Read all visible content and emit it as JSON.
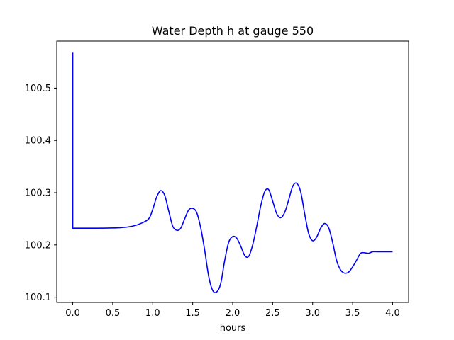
{
  "chart_data": {
    "type": "line",
    "title": "Water Depth h at gauge 550",
    "xlabel": "hours",
    "ylabel": "",
    "xlim": [
      -0.2,
      4.2
    ],
    "ylim": [
      100.09,
      100.59
    ],
    "xticks": [
      0.0,
      0.5,
      1.0,
      1.5,
      2.0,
      2.5,
      3.0,
      3.5,
      4.0
    ],
    "xtick_labels": [
      "0.0",
      "0.5",
      "1.0",
      "1.5",
      "2.0",
      "2.5",
      "3.0",
      "3.5",
      "4.0"
    ],
    "yticks": [
      100.1,
      100.2,
      100.3,
      100.4,
      100.5
    ],
    "ytick_labels": [
      "100.1",
      "100.2",
      "100.3",
      "100.4",
      "100.5"
    ],
    "grid": false,
    "series": [
      {
        "color": "#0000ff",
        "x": [
          0.0,
          0.0,
          0.0,
          0.3,
          0.6,
          0.75,
          0.85,
          0.95,
          1.0,
          1.05,
          1.1,
          1.15,
          1.2,
          1.25,
          1.3,
          1.35,
          1.4,
          1.45,
          1.5,
          1.55,
          1.6,
          1.65,
          1.7,
          1.75,
          1.8,
          1.85,
          1.9,
          1.95,
          2.0,
          2.05,
          2.1,
          2.15,
          2.2,
          2.25,
          2.3,
          2.35,
          2.4,
          2.45,
          2.5,
          2.55,
          2.6,
          2.65,
          2.7,
          2.75,
          2.8,
          2.85,
          2.9,
          2.95,
          3.0,
          3.05,
          3.1,
          3.15,
          3.2,
          3.25,
          3.3,
          3.35,
          3.4,
          3.45,
          3.5,
          3.55,
          3.6,
          3.65,
          3.7,
          3.75,
          3.8,
          3.85,
          3.9,
          3.95,
          4.0
        ],
        "values": [
          100.568,
          100.568,
          100.232,
          100.232,
          100.233,
          100.236,
          100.241,
          100.25,
          100.268,
          100.292,
          100.304,
          100.295,
          100.265,
          100.236,
          100.228,
          100.232,
          100.25,
          100.267,
          100.27,
          100.262,
          100.233,
          100.19,
          100.14,
          100.113,
          100.11,
          100.126,
          100.17,
          100.205,
          100.216,
          100.213,
          100.198,
          100.18,
          100.178,
          100.2,
          100.235,
          100.274,
          100.302,
          100.306,
          100.284,
          100.26,
          100.252,
          100.262,
          100.286,
          100.312,
          100.318,
          100.302,
          100.26,
          100.222,
          100.208,
          100.215,
          100.232,
          100.241,
          100.233,
          100.205,
          100.17,
          100.152,
          100.146,
          100.148,
          100.158,
          100.171,
          100.184,
          100.185,
          100.184,
          100.187,
          100.187,
          100.187,
          100.187,
          100.187,
          100.187
        ]
      }
    ]
  }
}
